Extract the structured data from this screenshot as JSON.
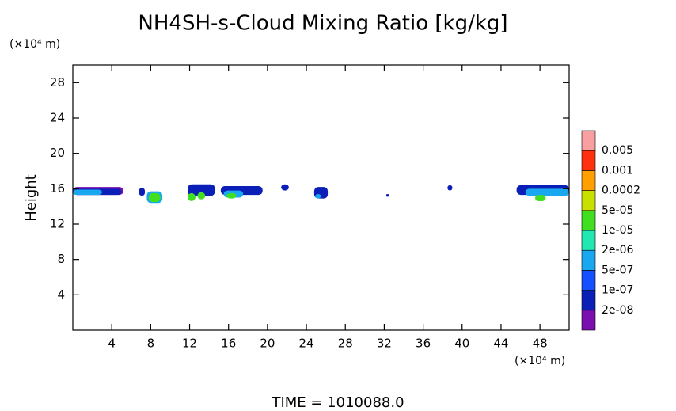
{
  "chart_data": {
    "type": "contour",
    "title": "NH4SH-s-Cloud Mixing Ratio [kg/kg]",
    "y_unit": "(×10⁴ m)",
    "x_unit": "(×10⁴ m)",
    "y_label": "Height",
    "footer": "TIME = 1010088.0",
    "xlim": [
      0,
      51
    ],
    "ylim": [
      0,
      30
    ],
    "xticks": [
      4,
      8,
      12,
      16,
      20,
      24,
      28,
      32,
      36,
      40,
      44,
      48
    ],
    "yticks": [
      4,
      8,
      12,
      16,
      20,
      24,
      28
    ],
    "levels": [
      {
        "label": "2e-08",
        "color": "#7a0fb0"
      },
      {
        "label": "1e-07",
        "color": "#0a1fb8"
      },
      {
        "label": "5e-07",
        "color": "#1450ff"
      },
      {
        "label": "2e-06",
        "color": "#19a8f0"
      },
      {
        "label": "1e-05",
        "color": "#20e8b0"
      },
      {
        "label": "5e-05",
        "color": "#40e020"
      },
      {
        "label": "0.0002",
        "color": "#c8e000"
      },
      {
        "label": "0.001",
        "color": "#ffa000"
      },
      {
        "label": "0.005",
        "color": "#ff3010"
      },
      {
        "label": null,
        "color": "#f8a0a0"
      }
    ],
    "regions": [
      {
        "x": [
          0,
          5.2
        ],
        "y": [
          15.3,
          16.2
        ],
        "level": 0
      },
      {
        "x": [
          0,
          5
        ],
        "y": [
          15.3,
          16.0
        ],
        "level": 1
      },
      {
        "x": [
          0,
          3
        ],
        "y": [
          15.3,
          15.9
        ],
        "level": 3
      },
      {
        "x": [
          6.8,
          7.4
        ],
        "y": [
          15.2,
          16.1
        ],
        "level": 1
      },
      {
        "x": [
          7.6,
          9.2
        ],
        "y": [
          14.4,
          15.7
        ],
        "level": 3
      },
      {
        "x": [
          7.8,
          9
        ],
        "y": [
          14.5,
          15.5
        ],
        "level": 5
      },
      {
        "x": [
          11.8,
          14.6
        ],
        "y": [
          15.2,
          16.5
        ],
        "level": 1
      },
      {
        "x": [
          11.8,
          12.6
        ],
        "y": [
          14.6,
          15.5
        ],
        "level": 5
      },
      {
        "x": [
          12.8,
          13.6
        ],
        "y": [
          14.8,
          15.6
        ],
        "level": 5
      },
      {
        "x": [
          15.2,
          19.5
        ],
        "y": [
          15.3,
          16.3
        ],
        "level": 1
      },
      {
        "x": [
          15.5,
          17.5
        ],
        "y": [
          15.0,
          15.8
        ],
        "level": 3
      },
      {
        "x": [
          15.8,
          16.8
        ],
        "y": [
          14.9,
          15.5
        ],
        "level": 5
      },
      {
        "x": [
          21.4,
          22.2
        ],
        "y": [
          15.8,
          16.5
        ],
        "level": 1
      },
      {
        "x": [
          24.8,
          26.2
        ],
        "y": [
          14.9,
          16.2
        ],
        "level": 1
      },
      {
        "x": [
          24.9,
          25.5
        ],
        "y": [
          14.9,
          15.4
        ],
        "level": 3
      },
      {
        "x": [
          32.2,
          32.5
        ],
        "y": [
          15.1,
          15.4
        ],
        "level": 1
      },
      {
        "x": [
          38.5,
          39
        ],
        "y": [
          15.8,
          16.4
        ],
        "level": 1
      },
      {
        "x": [
          45.6,
          51
        ],
        "y": [
          15.3,
          16.4
        ],
        "level": 1
      },
      {
        "x": [
          46.5,
          51
        ],
        "y": [
          15.2,
          16.0
        ],
        "level": 3
      },
      {
        "x": [
          47.5,
          48.6
        ],
        "y": [
          14.6,
          15.3
        ],
        "level": 5
      }
    ]
  }
}
